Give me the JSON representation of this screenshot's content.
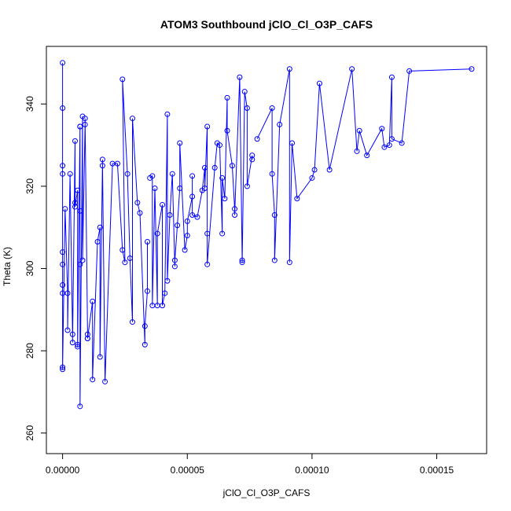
{
  "chart_data": {
    "type": "scatter",
    "title": "ATOM3 Southbound jClO_Cl_O3P_CAFS",
    "xlabel": "jClO_Cl_O3P_CAFS",
    "ylabel": "Theta (K)",
    "xlim": [
      -6.5e-06,
      0.00017
    ],
    "ylim": [
      255,
      354
    ],
    "xticks": [
      0,
      5e-05,
      0.0001,
      0.00015
    ],
    "xtick_labels": [
      "0.00000",
      "0.00005",
      "0.00010",
      "0.00015"
    ],
    "yticks": [
      260,
      280,
      300,
      320,
      340
    ],
    "ytick_labels": [
      "260",
      "280",
      "300",
      "320",
      "340"
    ],
    "grid": false,
    "legend": "none",
    "colors": {
      "series": "#0000ff",
      "axes": "#000000"
    },
    "series": [
      {
        "points": [
          [
            0,
            350
          ],
          [
            0,
            339
          ],
          [
            0,
            325
          ],
          [
            0,
            323
          ],
          [
            0,
            304
          ],
          [
            0,
            301
          ],
          [
            0,
            296
          ],
          [
            0,
            294
          ],
          [
            0,
            276
          ],
          [
            0,
            275.5
          ],
          [
            1e-06,
            314.5
          ],
          [
            2e-06,
            294
          ],
          [
            2e-06,
            285
          ],
          [
            3e-06,
            323
          ],
          [
            4e-06,
            284
          ],
          [
            4e-06,
            282
          ],
          [
            5e-06,
            331
          ],
          [
            5e-06,
            316
          ],
          [
            5e-06,
            315
          ],
          [
            6e-06,
            319
          ],
          [
            6e-06,
            281.5
          ],
          [
            6e-06,
            281
          ],
          [
            7e-06,
            334.5
          ],
          [
            7e-06,
            334.5
          ],
          [
            7e-06,
            314
          ],
          [
            7e-06,
            301
          ],
          [
            7e-06,
            266.5
          ],
          [
            8e-06,
            337
          ],
          [
            8e-06,
            302
          ],
          [
            9e-06,
            335
          ],
          [
            9e-06,
            336.5
          ],
          [
            1e-05,
            284
          ],
          [
            1e-05,
            283
          ]
        ]
      },
      {
        "points": [
          [
            1e-05,
            283
          ],
          [
            1.2e-05,
            292
          ],
          [
            1.2e-05,
            273
          ],
          [
            1.4e-05,
            306.5
          ],
          [
            1.5e-05,
            310
          ],
          [
            1.5e-05,
            278.5
          ],
          [
            1.6e-05,
            326.5
          ],
          [
            1.6e-05,
            325
          ],
          [
            1.7e-05,
            272.5
          ],
          [
            2e-05,
            325.5
          ],
          [
            2.2e-05,
            325.5
          ],
          [
            2.4e-05,
            304.5
          ],
          [
            2.5e-05,
            301.5
          ],
          [
            2.4e-05,
            346
          ],
          [
            2.6e-05,
            323
          ],
          [
            2.7e-05,
            302.5
          ],
          [
            2.8e-05,
            287
          ],
          [
            2.8e-05,
            336.5
          ],
          [
            3e-05,
            316
          ],
          [
            3.1e-05,
            313.5
          ],
          [
            3.3e-05,
            281.5
          ],
          [
            3.3e-05,
            286
          ],
          [
            3.4e-05,
            294.5
          ],
          [
            3.4e-05,
            306.5
          ]
        ]
      },
      {
        "points": [
          [
            3.5e-05,
            322
          ],
          [
            3.6e-05,
            322.5
          ],
          [
            3.6e-05,
            291
          ],
          [
            3.7e-05,
            319.5
          ],
          [
            3.8e-05,
            291
          ],
          [
            3.8e-05,
            308.5
          ],
          [
            4e-05,
            315.5
          ],
          [
            4e-05,
            291
          ],
          [
            4.1e-05,
            294
          ],
          [
            4.2e-05,
            337.5
          ],
          [
            4.2e-05,
            297
          ],
          [
            4.3e-05,
            313
          ],
          [
            4.4e-05,
            323
          ],
          [
            4.5e-05,
            300.5
          ],
          [
            4.5e-05,
            302
          ],
          [
            4.6e-05,
            310.5
          ],
          [
            4.7e-05,
            319.5
          ],
          [
            4.7e-05,
            330.5
          ],
          [
            4.9e-05,
            304.5
          ],
          [
            5e-05,
            308
          ],
          [
            5e-05,
            311.5
          ],
          [
            5.2e-05,
            317.5
          ],
          [
            5.2e-05,
            322.5
          ],
          [
            5.2e-05,
            313
          ],
          [
            5.4e-05,
            312.5
          ],
          [
            5.6e-05,
            319
          ],
          [
            5.7e-05,
            324.5
          ],
          [
            5.7e-05,
            319.5
          ],
          [
            5.8e-05,
            334.5
          ],
          [
            5.8e-05,
            308.5
          ],
          [
            5.8e-05,
            301
          ],
          [
            6.1e-05,
            324.5
          ],
          [
            6.2e-05,
            330.5
          ],
          [
            6.3e-05,
            330
          ],
          [
            6.4e-05,
            308.5
          ],
          [
            6.4e-05,
            322
          ],
          [
            6.5e-05,
            317
          ],
          [
            6.6e-05,
            341.5
          ],
          [
            6.6e-05,
            333.5
          ],
          [
            6.8e-05,
            325
          ],
          [
            6.9e-05,
            314.5
          ],
          [
            6.9e-05,
            313
          ],
          [
            7.1e-05,
            346.5
          ],
          [
            7.2e-05,
            301.5
          ],
          [
            7.2e-05,
            302
          ],
          [
            7.3e-05,
            343
          ],
          [
            7.4e-05,
            339
          ],
          [
            7.4e-05,
            320
          ],
          [
            7.6e-05,
            327.5
          ],
          [
            7.6e-05,
            326.5
          ]
        ]
      },
      {
        "points": [
          [
            7.8e-05,
            331.5
          ],
          [
            8.4e-05,
            339
          ],
          [
            8.4e-05,
            323
          ],
          [
            8.5e-05,
            313
          ],
          [
            8.5e-05,
            302
          ],
          [
            8.7e-05,
            335
          ],
          [
            9.1e-05,
            348.5
          ],
          [
            9.1e-05,
            301.5
          ],
          [
            9.2e-05,
            330.5
          ],
          [
            9.4e-05,
            317
          ],
          [
            0.0001,
            322
          ],
          [
            0.000101,
            324
          ],
          [
            0.000103,
            345
          ],
          [
            0.000107,
            324
          ],
          [
            0.000116,
            348.5
          ],
          [
            0.000118,
            328.5
          ],
          [
            0.000119,
            333.5
          ],
          [
            0.000122,
            327.5
          ],
          [
            0.000128,
            334
          ],
          [
            0.000129,
            329.5
          ],
          [
            0.000131,
            330
          ],
          [
            0.000132,
            346.5
          ],
          [
            0.000132,
            331.5
          ],
          [
            0.000136,
            330.5
          ],
          [
            0.000139,
            348
          ],
          [
            0.000164,
            348.5
          ]
        ]
      }
    ]
  }
}
